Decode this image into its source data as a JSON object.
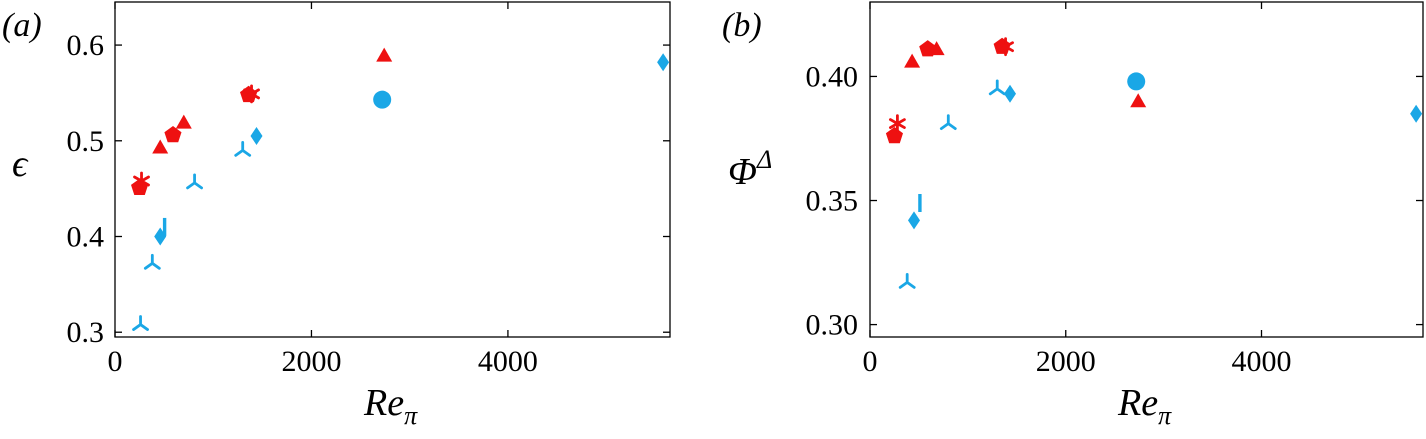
{
  "colors": {
    "red": "#ee1111",
    "blue": "#1aa7e6"
  },
  "chart_data": [
    {
      "type": "scatter",
      "panel": "(a)",
      "xlabel": "Re",
      "xlabel_sub": "π",
      "ylabel": "ϵ",
      "xlim": [
        0,
        5650
      ],
      "ylim": [
        0.295,
        0.645
      ],
      "xticks": [
        0,
        2000,
        4000
      ],
      "xtick_labels": [
        "0",
        "2000",
        "4000"
      ],
      "yticks": [
        0.3,
        0.4,
        0.5,
        0.6
      ],
      "ytick_labels": [
        "0.3",
        "0.4",
        "0.5",
        "0.6"
      ],
      "points": [
        {
          "x": 250,
          "y": 0.451,
          "marker": "pentagon",
          "color": "red"
        },
        {
          "x": 270,
          "y": 0.458,
          "marker": "asterisk",
          "color": "red"
        },
        {
          "x": 460,
          "y": 0.493,
          "marker": "triangle",
          "color": "red"
        },
        {
          "x": 590,
          "y": 0.506,
          "marker": "pentagon",
          "color": "red"
        },
        {
          "x": 700,
          "y": 0.519,
          "marker": "triangle",
          "color": "red"
        },
        {
          "x": 1360,
          "y": 0.548,
          "marker": "pentagon",
          "color": "red"
        },
        {
          "x": 1390,
          "y": 0.549,
          "marker": "asterisk",
          "color": "red"
        },
        {
          "x": 2740,
          "y": 0.589,
          "marker": "triangle",
          "color": "red"
        },
        {
          "x": 260,
          "y": 0.308,
          "marker": "tri",
          "color": "blue"
        },
        {
          "x": 380,
          "y": 0.372,
          "marker": "tri",
          "color": "blue"
        },
        {
          "x": 460,
          "y": 0.4,
          "marker": "diamond",
          "color": "blue"
        },
        {
          "x": 505,
          "y": 0.41,
          "marker": "vline",
          "color": "blue"
        },
        {
          "x": 810,
          "y": 0.456,
          "marker": "tri",
          "color": "blue"
        },
        {
          "x": 1300,
          "y": 0.49,
          "marker": "tri",
          "color": "blue"
        },
        {
          "x": 1440,
          "y": 0.505,
          "marker": "diamond",
          "color": "blue"
        },
        {
          "x": 2720,
          "y": 0.543,
          "marker": "circle",
          "color": "blue"
        },
        {
          "x": 5580,
          "y": 0.582,
          "marker": "diamond",
          "color": "blue"
        }
      ]
    },
    {
      "type": "scatter",
      "panel": "(b)",
      "xlabel": "Re",
      "xlabel_sub": "π",
      "ylabel": "Φ",
      "ylabel_sup": "Δ",
      "xlim": [
        0,
        5650
      ],
      "ylim": [
        0.295,
        0.43
      ],
      "xticks": [
        0,
        2000,
        4000
      ],
      "xtick_labels": [
        "0",
        "2000",
        "4000"
      ],
      "yticks": [
        0.3,
        0.35,
        0.4
      ],
      "ytick_labels": [
        "0.30",
        "0.35",
        "0.40"
      ],
      "points": [
        {
          "x": 250,
          "y": 0.376,
          "marker": "pentagon",
          "color": "red"
        },
        {
          "x": 280,
          "y": 0.381,
          "marker": "asterisk",
          "color": "red"
        },
        {
          "x": 430,
          "y": 0.406,
          "marker": "triangle",
          "color": "red"
        },
        {
          "x": 590,
          "y": 0.411,
          "marker": "pentagon",
          "color": "red"
        },
        {
          "x": 680,
          "y": 0.411,
          "marker": "triangle",
          "color": "red"
        },
        {
          "x": 1350,
          "y": 0.412,
          "marker": "pentagon",
          "color": "red"
        },
        {
          "x": 1385,
          "y": 0.412,
          "marker": "asterisk",
          "color": "red"
        },
        {
          "x": 2740,
          "y": 0.39,
          "marker": "triangle",
          "color": "red"
        },
        {
          "x": 380,
          "y": 0.317,
          "marker": "tri",
          "color": "blue"
        },
        {
          "x": 450,
          "y": 0.342,
          "marker": "diamond",
          "color": "blue"
        },
        {
          "x": 510,
          "y": 0.349,
          "marker": "vline",
          "color": "blue"
        },
        {
          "x": 800,
          "y": 0.381,
          "marker": "tri",
          "color": "blue"
        },
        {
          "x": 1300,
          "y": 0.395,
          "marker": "tri",
          "color": "blue"
        },
        {
          "x": 1430,
          "y": 0.393,
          "marker": "diamond",
          "color": "blue"
        },
        {
          "x": 2720,
          "y": 0.398,
          "marker": "circle",
          "color": "blue"
        },
        {
          "x": 5580,
          "y": 0.385,
          "marker": "diamond",
          "color": "blue"
        }
      ]
    }
  ]
}
